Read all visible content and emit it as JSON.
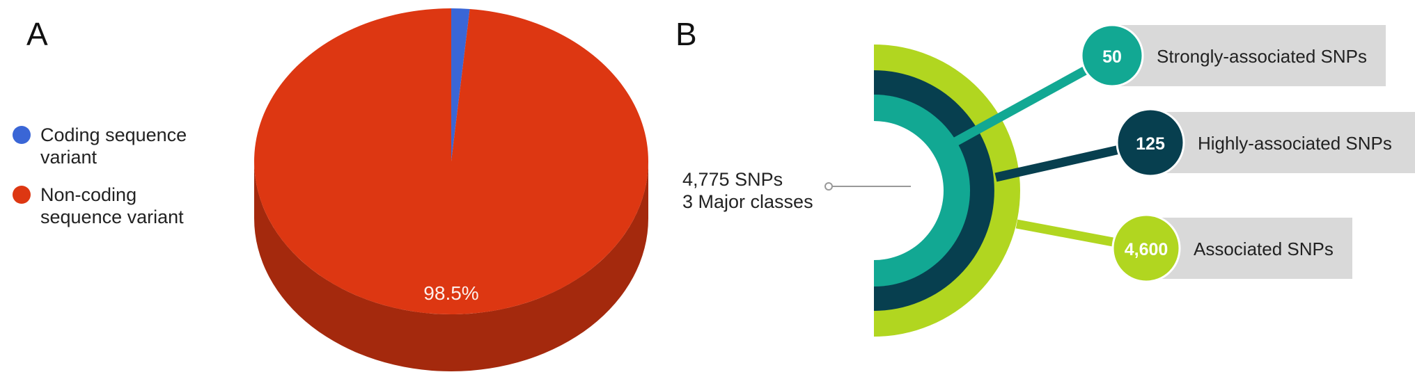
{
  "panels": {
    "a": "A",
    "b": "B"
  },
  "chart_data": [
    {
      "type": "pie",
      "labels": [
        "Coding sequence variant",
        "Non-coding sequence variant"
      ],
      "values": [
        1.5,
        98.5
      ],
      "colors": [
        "#3a66d6",
        "#dd3712"
      ],
      "data_labels": [
        "",
        "98.5%"
      ],
      "legend_position": "left",
      "style": "3d"
    },
    {
      "type": "radial-bar",
      "total_label": [
        "4,775 SNPs",
        "3 Major classes"
      ],
      "categories": [
        "Strongly-associated SNPs",
        "Highly-associated SNPs",
        "Associated SNPs"
      ],
      "values": [
        50,
        125,
        4600
      ],
      "value_labels": [
        "50",
        "125",
        "4,600"
      ],
      "colors": [
        "#12a893",
        "#073f4f",
        "#b1d620"
      ]
    }
  ]
}
